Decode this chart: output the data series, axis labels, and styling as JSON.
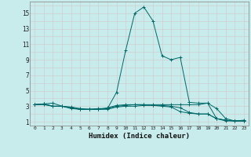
{
  "x": [
    0,
    1,
    2,
    3,
    4,
    5,
    6,
    7,
    8,
    9,
    10,
    11,
    12,
    13,
    14,
    15,
    16,
    17,
    18,
    19,
    20,
    21,
    22,
    23
  ],
  "series": [
    [
      3.2,
      3.3,
      3.4,
      3.0,
      2.9,
      2.7,
      2.6,
      2.7,
      2.7,
      4.8,
      10.2,
      15.0,
      15.8,
      14.0,
      9.5,
      9.0,
      9.3,
      3.5,
      3.4,
      3.4,
      1.4,
      1.1,
      1.1,
      1.2
    ],
    [
      3.2,
      3.3,
      3.0,
      3.0,
      2.7,
      2.6,
      2.6,
      2.6,
      2.8,
      3.1,
      3.2,
      3.2,
      3.2,
      3.2,
      3.2,
      3.2,
      3.2,
      3.2,
      3.2,
      3.4,
      2.7,
      1.4,
      1.1,
      1.1
    ],
    [
      3.2,
      3.2,
      3.0,
      3.0,
      2.8,
      2.6,
      2.6,
      2.6,
      2.6,
      2.9,
      3.0,
      3.0,
      3.1,
      3.1,
      3.0,
      2.9,
      2.3,
      2.1,
      2.0,
      2.0,
      1.4,
      1.2,
      1.1,
      1.1
    ],
    [
      3.2,
      3.3,
      3.0,
      3.0,
      2.8,
      2.6,
      2.6,
      2.6,
      2.7,
      3.0,
      3.1,
      3.2,
      3.2,
      3.1,
      3.1,
      3.0,
      2.8,
      2.2,
      2.0,
      2.0,
      1.4,
      1.2,
      1.1,
      1.1
    ]
  ],
  "line_color": "#006868",
  "bg_color": "#c8ecec",
  "grid_major_color": "#c0d8d8",
  "grid_minor_color": "#dce8e8",
  "xlabel": "Humidex (Indice chaleur)",
  "ytick_labels": [
    "1",
    "3",
    "5",
    "7",
    "9",
    "11",
    "13",
    "15"
  ],
  "ytick_values": [
    1,
    3,
    5,
    7,
    9,
    11,
    13,
    15
  ],
  "xlim": [
    -0.5,
    23.5
  ],
  "ylim": [
    0.5,
    16.5
  ]
}
